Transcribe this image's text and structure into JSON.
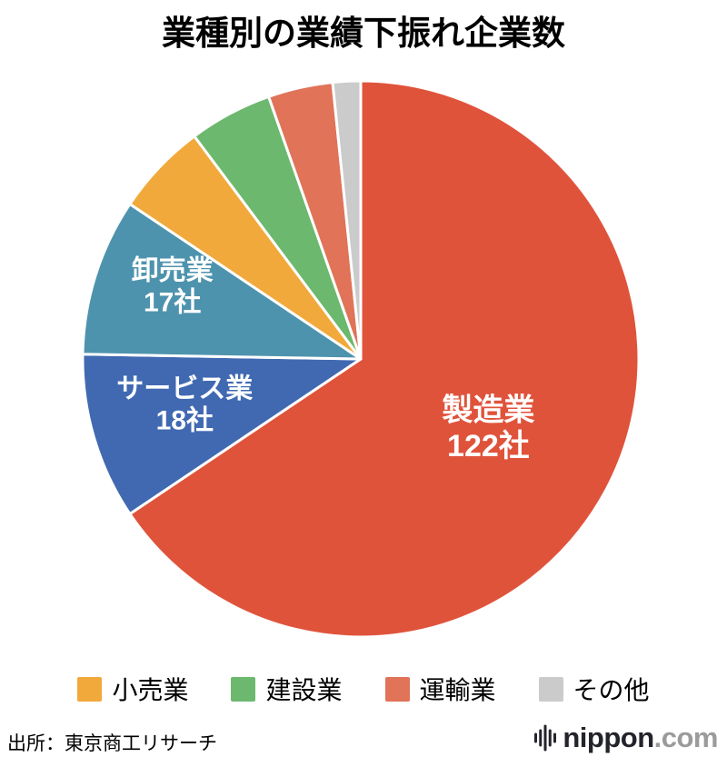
{
  "title": "業種別の業績下振れ企業数",
  "source": "出所：東京商工リサーチ",
  "logo": {
    "brand": "nippon",
    "tld": ".com",
    "icon": "soundwave-icon"
  },
  "chart_data": {
    "type": "pie",
    "title": "業種別の業績下振れ企業数",
    "value_unit": "社",
    "start_angle_deg": 0,
    "direction": "clockwise",
    "legend_position": "bottom",
    "slices": [
      {
        "key": "manufacturing",
        "label": "製造業",
        "value": 122,
        "value_label": "122社",
        "color": "#E0533B",
        "show_label_in_slice": true
      },
      {
        "key": "services",
        "label": "サービス業",
        "value": 18,
        "value_label": "18社",
        "color": "#4069B1",
        "show_label_in_slice": true
      },
      {
        "key": "wholesale",
        "label": "卸売業",
        "value": 17,
        "value_label": "17社",
        "color": "#4E93AD",
        "show_label_in_slice": true
      },
      {
        "key": "retail",
        "label": "小売業",
        "value": 10,
        "color": "#F2A93C",
        "show_label_in_slice": false
      },
      {
        "key": "construction",
        "label": "建設業",
        "value": 9,
        "color": "#6CB86E",
        "show_label_in_slice": false
      },
      {
        "key": "transport",
        "label": "運輸業",
        "value": 7,
        "color": "#E07358",
        "show_label_in_slice": false
      },
      {
        "key": "others",
        "label": "その他",
        "value": 3,
        "color": "#CBCBCB",
        "show_label_in_slice": false
      }
    ],
    "legend": [
      "小売業",
      "建設業",
      "運輸業",
      "その他"
    ]
  }
}
